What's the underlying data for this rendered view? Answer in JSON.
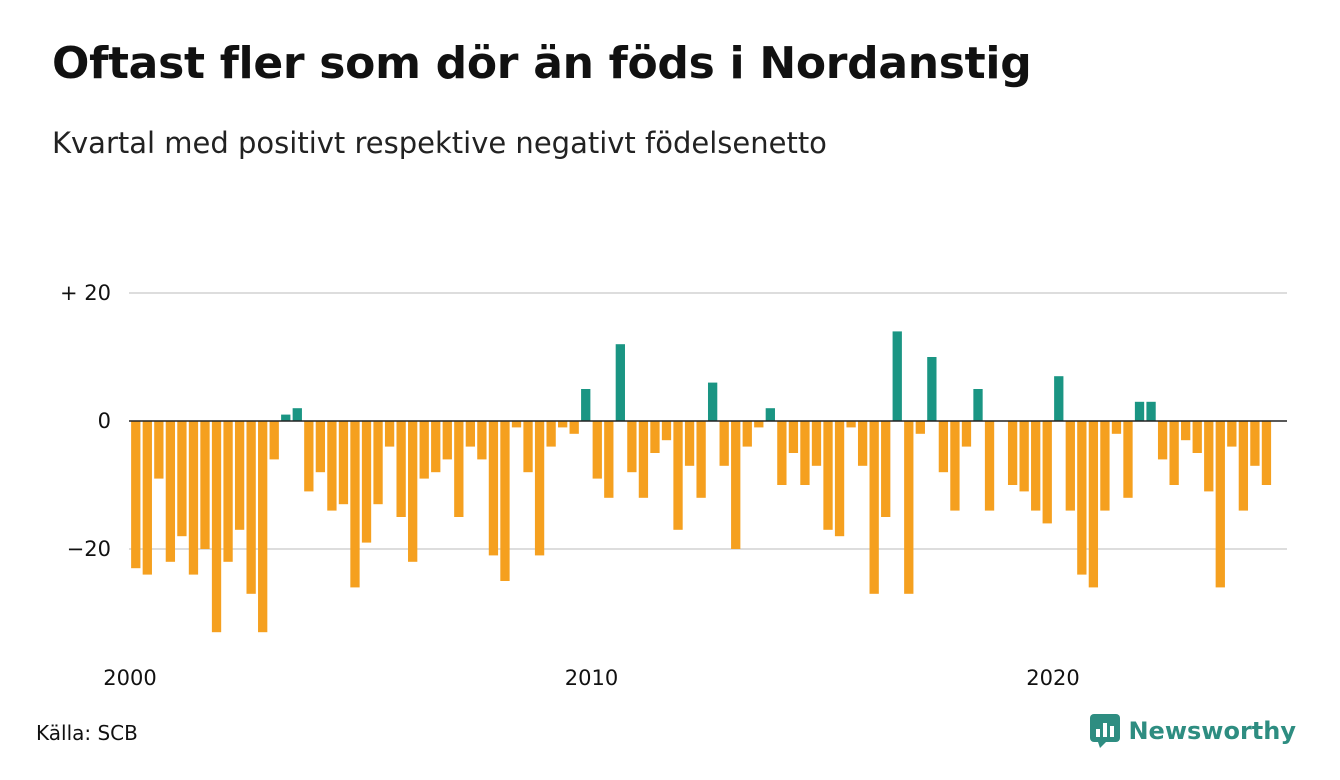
{
  "title": "Oftast fler som dör än föds i Nordanstig",
  "subtitle": "Kvartal med positivt respektive negativt födelsenetto",
  "source": "Källa: SCB",
  "brand": {
    "name": "Newsworthy",
    "icon": "newsworthy-logo-icon"
  },
  "colors": {
    "positive": "#1a9583",
    "negative": "#f5a01f",
    "grid": "#dddddd",
    "baseline": "#222222"
  },
  "chart_data": {
    "type": "bar",
    "title": "Oftast fler som dör än föds i Nordanstig",
    "subtitle": "Kvartal med positivt respektive negativt födelsenetto",
    "xlabel": "",
    "ylabel": "",
    "x_start": 2000,
    "periods_per_year": 4,
    "xlim": [
      2000,
      2023.75
    ],
    "ylim": [
      -36,
      22
    ],
    "y_ticks": [
      {
        "value": 20,
        "label": "+ 20"
      },
      {
        "value": 0,
        "label": "0"
      },
      {
        "value": -20,
        "label": "−20"
      }
    ],
    "x_ticks": [
      {
        "value": 2000,
        "label": "2000"
      },
      {
        "value": 2010,
        "label": "2010"
      },
      {
        "value": 2020,
        "label": "2020"
      }
    ],
    "grid": true,
    "legend": "none",
    "values": [
      -23,
      -24,
      -9,
      -22,
      -18,
      -24,
      -20,
      -33,
      -22,
      -17,
      -27,
      -33,
      -6,
      1,
      2,
      -11,
      -8,
      -14,
      -13,
      -26,
      -19,
      -13,
      -4,
      -15,
      -22,
      -9,
      -8,
      -6,
      -15,
      -4,
      -6,
      -21,
      -25,
      -1,
      -8,
      -21,
      -4,
      -1,
      -2,
      5,
      -9,
      -12,
      12,
      -8,
      -12,
      -5,
      -3,
      -17,
      -7,
      -12,
      6,
      -7,
      -20,
      -4,
      -1,
      2,
      -10,
      -5,
      -10,
      -7,
      -17,
      -18,
      -1,
      -7,
      -27,
      -15,
      14,
      -27,
      -2,
      10,
      -8,
      -14,
      -4,
      5,
      -14,
      0,
      -10,
      -11,
      -14,
      -16,
      7,
      -14,
      -24,
      -26,
      -14,
      -2,
      -12,
      3,
      3,
      -6,
      -10,
      -3,
      -5,
      -11,
      -26,
      -4,
      -14,
      -7,
      -10
    ]
  }
}
